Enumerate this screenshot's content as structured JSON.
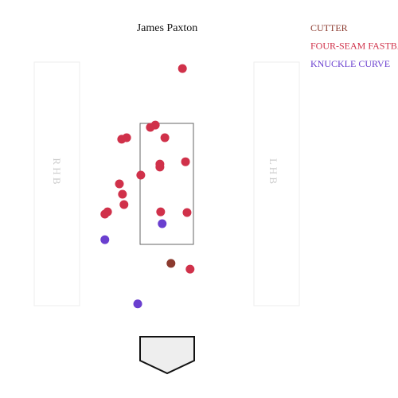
{
  "chart_data": {
    "type": "scatter",
    "title": "James Paxton",
    "xlim": [
      -3.5,
      3.5
    ],
    "ylim": [
      0,
      9
    ],
    "side_labels": [
      "R H B",
      "L H B"
    ],
    "series": [
      {
        "name": "CUTTER",
        "color": "#8b3a2e",
        "x": [
          0.1
        ],
        "values": [
          2.69
        ]
      },
      {
        "name": "FOUR-SEAM FASTBALL",
        "color": "#d0314a",
        "x": [
          0.4,
          -0.31,
          -0.44,
          -0.06,
          -1.06,
          -1.19,
          0.48,
          -0.19,
          -0.19,
          -0.69,
          -1.25,
          -1.17,
          -1.13,
          -1.56,
          -1.63,
          -0.17,
          0.52,
          0.6
        ],
        "values": [
          7.79,
          6.31,
          6.25,
          5.98,
          5.98,
          5.94,
          5.35,
          5.29,
          5.21,
          5.0,
          4.77,
          4.5,
          4.23,
          4.04,
          3.98,
          4.04,
          4.02,
          2.54
        ]
      },
      {
        "name": "KNUCKLE CURVE",
        "color": "#6a3fcf",
        "x": [
          -0.13,
          -1.63,
          -0.77
        ],
        "values": [
          3.73,
          3.31,
          1.63
        ]
      }
    ]
  }
}
